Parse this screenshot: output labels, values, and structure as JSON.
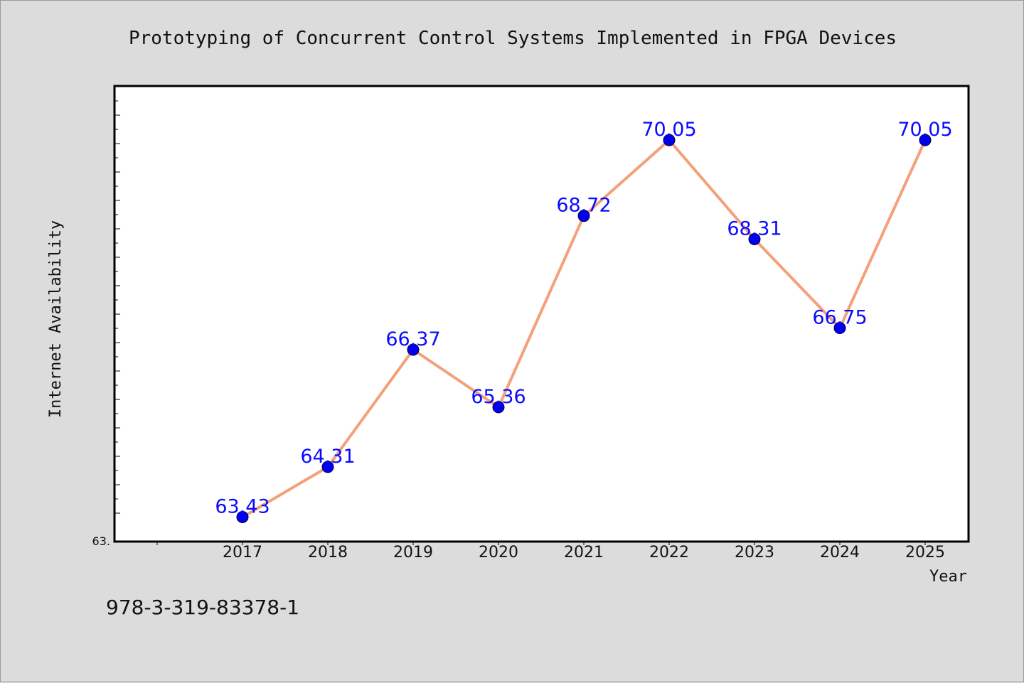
{
  "chart_data": {
    "type": "line",
    "title": "Prototyping of Concurrent Control Systems Implemented in FPGA Devices",
    "xlabel": "Year",
    "ylabel": "Internet Availability",
    "x": [
      "2017",
      "2018",
      "2019",
      "2020",
      "2021",
      "2022",
      "2023",
      "2024",
      "2025"
    ],
    "series": [
      {
        "values": [
          63.43,
          64.31,
          66.37,
          65.36,
          68.72,
          70.05,
          68.31,
          66.75,
          70.05
        ],
        "labels": [
          "63.43",
          "64.31",
          "66.37",
          "65.36",
          "68.72",
          "70.05",
          "68.31",
          "66.75",
          "70.05"
        ],
        "line_color": "#f4a07a",
        "marker_color": "#0000ee"
      }
    ],
    "y_tick_labels": [
      "63."
    ],
    "ylim": [
      63.0,
      71.0
    ],
    "grid": false
  },
  "footnote": "978-3-319-83378-1",
  "colors": {
    "background": "#dcdcdc",
    "plot_area": "#ffffff",
    "label_text": "#0a0aff"
  }
}
